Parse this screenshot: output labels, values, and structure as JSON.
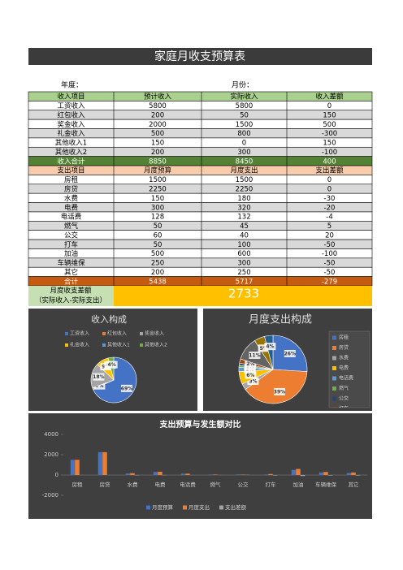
{
  "title": "家庭月收支预算表",
  "year_label": "年度：",
  "month_label": "月份：",
  "table": {
    "income_header": [
      "收入项目",
      "预计收入",
      "实际收入",
      "收入差额"
    ],
    "income_rows": [
      [
        "工资收入",
        5800,
        5800,
        0
      ],
      [
        "红包收入",
        200,
        50,
        150
      ],
      [
        "奖金收入",
        2000,
        1500,
        500
      ],
      [
        "礼金收入",
        500,
        800,
        -300
      ],
      [
        "其他收入1",
        150,
        0,
        150
      ],
      [
        "其他收入2",
        200,
        300,
        -100
      ]
    ],
    "income_total": [
      "收入合计",
      8850,
      8450,
      400
    ],
    "expense_header": [
      "支出项目",
      "月度预算",
      "月度支出",
      "支出差额"
    ],
    "expense_rows": [
      [
        "房租",
        1500,
        1500,
        0
      ],
      [
        "房贷",
        2250,
        2250,
        0
      ],
      [
        "水费",
        150,
        180,
        -30
      ],
      [
        "电费",
        300,
        320,
        -20
      ],
      [
        "电话费",
        128,
        132,
        -4
      ],
      [
        "燃气",
        50,
        45,
        5
      ],
      [
        "公交",
        60,
        40,
        20
      ],
      [
        "打车",
        50,
        100,
        -50
      ],
      [
        "加油",
        500,
        600,
        -100
      ],
      [
        "车辆维保",
        250,
        300,
        -50
      ],
      [
        "其它",
        200,
        250,
        -50
      ]
    ],
    "expense_total": [
      "合计",
      5438,
      5717,
      -279
    ]
  },
  "balance": {
    "label_line1": "月度收支差额",
    "label_line2": "（实际收入-实际支出）",
    "value": 2733
  },
  "chart_data": [
    {
      "type": "pie",
      "title": "收入构成",
      "categories": [
        "工资收入",
        "红包收入",
        "奖金收入",
        "礼金收入",
        "其他收入1",
        "其他收入2"
      ],
      "values": [
        69,
        1,
        18,
        9,
        0,
        4
      ],
      "value_labels": [
        "69%",
        "1%",
        "18%",
        "9%",
        "0%",
        "4%"
      ],
      "colors": [
        "#4472c4",
        "#ed7d31",
        "#a5a5a5",
        "#ffc000",
        "#5b9bd5",
        "#70ad47"
      ],
      "legend": "top"
    },
    {
      "type": "pie",
      "title": "月度支出构成",
      "categories": [
        "房租",
        "房贷",
        "水费",
        "电费",
        "电话费",
        "燃气",
        "公交",
        "打车",
        "加油",
        "车辆维保",
        "其它"
      ],
      "values": [
        26,
        39,
        3,
        6,
        2,
        1,
        1,
        2,
        11,
        5,
        4
      ],
      "value_labels": [
        "26%",
        "39%",
        "3%",
        "6%",
        "2%",
        "1%",
        "1%",
        "2%",
        "11%",
        "5%",
        "4%"
      ],
      "colors": [
        "#4472c4",
        "#ed7d31",
        "#a5a5a5",
        "#ffc000",
        "#5b9bd5",
        "#70ad47",
        "#264478",
        "#9e480e",
        "#636363",
        "#997300",
        "#255e91"
      ],
      "legend": "right"
    },
    {
      "type": "bar",
      "title": "支出预算与发生额对比",
      "categories": [
        "房租",
        "房贷",
        "水费",
        "电费",
        "电话费",
        "燃气",
        "公交",
        "打车",
        "加油",
        "车辆维保",
        "其它"
      ],
      "series": [
        {
          "name": "月度预算",
          "color": "#4472c4",
          "values": [
            1500,
            2250,
            150,
            300,
            128,
            50,
            60,
            50,
            500,
            250,
            200
          ]
        },
        {
          "name": "月度支出",
          "color": "#ed7d31",
          "values": [
            1500,
            2250,
            180,
            320,
            132,
            45,
            40,
            100,
            600,
            300,
            250
          ]
        },
        {
          "name": "支出差额",
          "color": "#a5a5a5",
          "values": [
            0,
            0,
            -30,
            -20,
            -4,
            5,
            20,
            -50,
            -100,
            -50,
            -50
          ]
        }
      ],
      "ylim": [
        -2000,
        4000
      ],
      "yticks": [
        -2000,
        0,
        2000,
        4000
      ],
      "grid": false,
      "legend": "bottom"
    }
  ]
}
